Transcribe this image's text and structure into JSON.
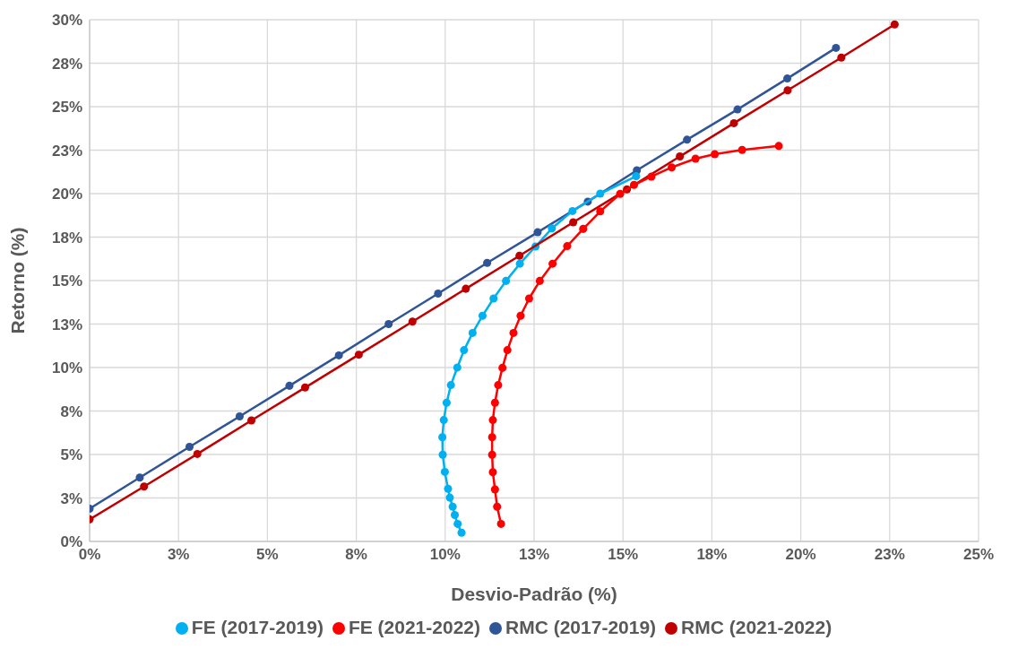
{
  "chart_data": {
    "type": "line",
    "xlabel": "Desvio-Padrão (%)",
    "ylabel": "Retorno (%)",
    "xlim": [
      0,
      25
    ],
    "ylim": [
      0,
      30
    ],
    "xticks": [
      {
        "value": 0,
        "label": "0%"
      },
      {
        "value": 2.5,
        "label": "3%"
      },
      {
        "value": 5,
        "label": "5%"
      },
      {
        "value": 7.5,
        "label": "8%"
      },
      {
        "value": 10,
        "label": "10%"
      },
      {
        "value": 12.5,
        "label": "13%"
      },
      {
        "value": 15,
        "label": "15%"
      },
      {
        "value": 17.5,
        "label": "18%"
      },
      {
        "value": 20,
        "label": "20%"
      },
      {
        "value": 22.5,
        "label": "23%"
      },
      {
        "value": 25,
        "label": "25%"
      }
    ],
    "yticks": [
      {
        "value": 0,
        "label": "0%"
      },
      {
        "value": 2.5,
        "label": "3%"
      },
      {
        "value": 5,
        "label": "5%"
      },
      {
        "value": 7.5,
        "label": "8%"
      },
      {
        "value": 10,
        "label": "10%"
      },
      {
        "value": 12.5,
        "label": "13%"
      },
      {
        "value": 15,
        "label": "15%"
      },
      {
        "value": 17.5,
        "label": "18%"
      },
      {
        "value": 20,
        "label": "20%"
      },
      {
        "value": 22.5,
        "label": "23%"
      },
      {
        "value": 25,
        "label": "25%"
      },
      {
        "value": 27.5,
        "label": "28%"
      },
      {
        "value": 30,
        "label": "30%"
      }
    ],
    "grid": true,
    "legend": "bottom",
    "marker": "circle",
    "line_style": "solid",
    "series": [
      {
        "name": "RMC (2017-2019)",
        "color": "#2f5597",
        "x": [
          0,
          1.41,
          2.81,
          4.22,
          5.62,
          7.01,
          8.41,
          9.8,
          11.18,
          12.6,
          14.01,
          15.39,
          16.8,
          18.22,
          19.62,
          20.99
        ],
        "values": [
          1.88,
          3.67,
          5.44,
          7.19,
          8.95,
          10.7,
          12.5,
          14.25,
          16.02,
          17.78,
          19.54,
          21.34,
          23.1,
          24.84,
          26.62,
          28.38
        ]
      },
      {
        "name": "FE (2017-2019)",
        "color": "#00b0f0",
        "x": [
          10.46,
          10.35,
          10.27,
          10.21,
          10.13,
          10.08,
          9.99,
          9.93,
          9.92,
          9.96,
          10.04,
          10.16,
          10.34,
          10.53,
          10.77,
          11.05,
          11.36,
          11.71,
          12.1,
          12.54,
          13.0,
          13.58,
          14.36,
          15.37
        ],
        "values": [
          0.5,
          1.01,
          1.52,
          2.0,
          2.52,
          3.03,
          4.0,
          4.99,
          5.99,
          6.98,
          7.98,
          8.99,
          10.0,
          11.0,
          11.99,
          12.98,
          13.97,
          14.98,
          15.97,
          16.96,
          18.0,
          19.0,
          20.0,
          21.0
        ]
      },
      {
        "name": "RMC (2021-2022)",
        "color": "#c00000",
        "x": [
          0,
          1.53,
          3.03,
          4.55,
          6.06,
          7.57,
          9.08,
          10.58,
          12.09,
          13.6,
          15.11,
          16.6,
          18.12,
          19.63,
          21.14,
          22.64
        ],
        "values": [
          1.27,
          3.16,
          5.03,
          6.96,
          8.85,
          10.74,
          12.64,
          14.53,
          16.43,
          18.35,
          20.24,
          22.14,
          24.05,
          25.94,
          27.82,
          29.73
        ]
      },
      {
        "name": "FE (2021-2022)",
        "color": "#ff0000",
        "x": [
          11.57,
          11.46,
          11.4,
          11.34,
          11.32,
          11.32,
          11.34,
          11.4,
          11.49,
          11.61,
          11.75,
          11.92,
          12.12,
          12.36,
          12.66,
          13.02,
          13.43,
          13.88,
          14.36,
          14.92,
          15.31,
          15.8,
          16.37,
          17.04,
          17.58,
          18.35,
          19.38
        ],
        "values": [
          1.01,
          2.0,
          2.99,
          3.98,
          4.99,
          5.99,
          6.98,
          7.98,
          8.99,
          9.98,
          11.0,
          11.99,
          12.98,
          13.97,
          14.98,
          15.97,
          16.98,
          17.97,
          18.98,
          19.99,
          20.5,
          20.98,
          21.51,
          22.01,
          22.27,
          22.51,
          22.74
        ]
      }
    ]
  }
}
